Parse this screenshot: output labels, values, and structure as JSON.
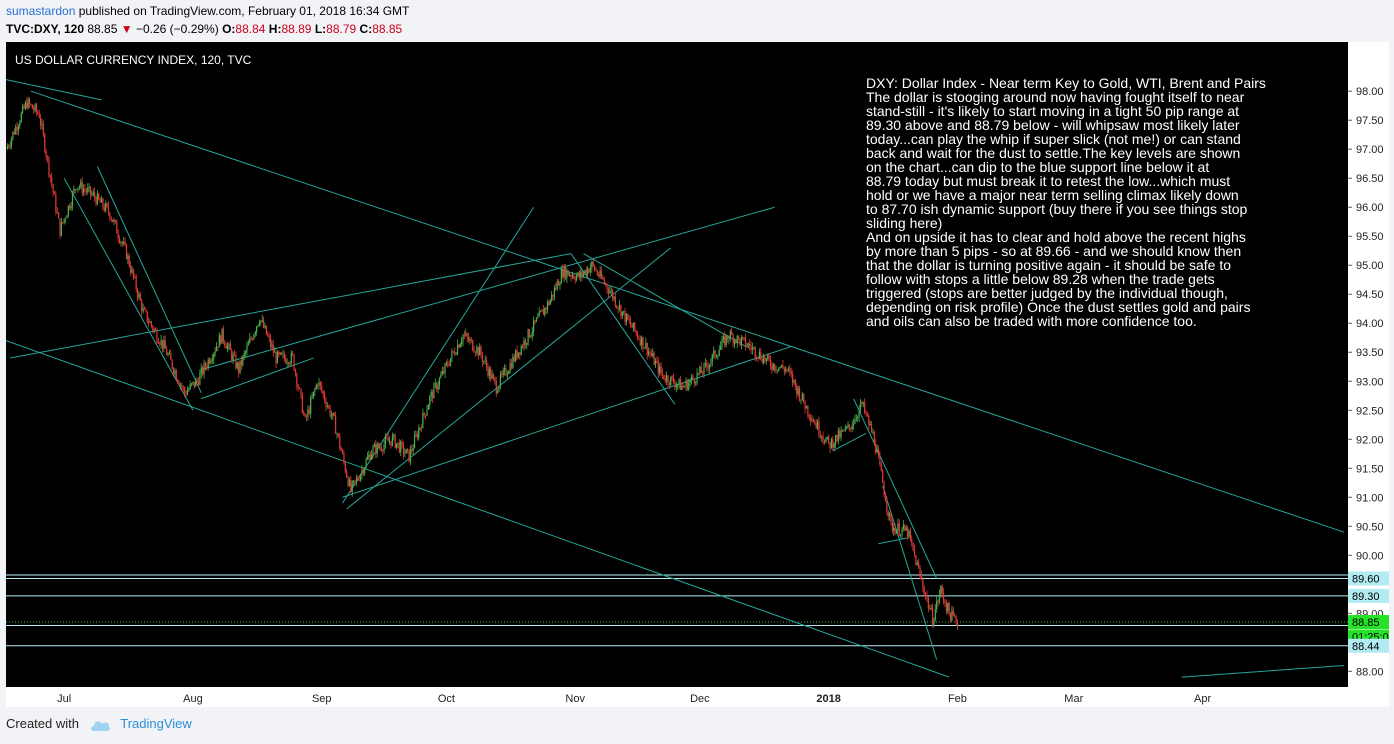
{
  "header": {
    "author": "sumastardon",
    "published_text": "published on TradingView.com, February 01, 2018 16:34 GMT",
    "symbol": "TVC:DXY, 120",
    "last": "88.85",
    "change_arrow": "▼",
    "change": "−0.26 (−0.29%)",
    "open_label": "O:",
    "open": "88.84",
    "high_label": "H:",
    "high": "88.89",
    "low_label": "L:",
    "low": "88.79",
    "close_label": "C:",
    "close": "88.85"
  },
  "footer": {
    "created_with": "Created with",
    "brand": "TradingView"
  },
  "chart_data": {
    "type": "candlestick",
    "title": "US DOLLAR CURRENCY INDEX, 120, TVC",
    "x_ticks": [
      "Jul",
      "Aug",
      "Sep",
      "Oct",
      "Nov",
      "Dec",
      "2018",
      "Feb",
      "Mar",
      "Apr"
    ],
    "y_ticks": [
      "98.00",
      "97.50",
      "97.00",
      "96.50",
      "96.00",
      "95.50",
      "95.00",
      "94.50",
      "94.00",
      "93.50",
      "93.00",
      "92.50",
      "92.00",
      "91.50",
      "91.00",
      "90.50",
      "90.00",
      "89.00",
      "88.00"
    ],
    "ylim": [
      87.85,
      98.4
    ],
    "xlim": [
      "2017-06-17",
      "2018-05-06"
    ],
    "price_path": [
      [
        "2017-06-17",
        97.0
      ],
      [
        "2017-06-22",
        97.8
      ],
      [
        "2017-06-25",
        97.6
      ],
      [
        "2017-06-30",
        95.6
      ],
      [
        "2017-07-04",
        96.4
      ],
      [
        "2017-07-08",
        96.2
      ],
      [
        "2017-07-12",
        95.9
      ],
      [
        "2017-07-16",
        95.2
      ],
      [
        "2017-07-20",
        94.2
      ],
      [
        "2017-07-25",
        93.6
      ],
      [
        "2017-07-30",
        92.8
      ],
      [
        "2017-08-02",
        93.0
      ],
      [
        "2017-08-08",
        93.8
      ],
      [
        "2017-08-12",
        93.2
      ],
      [
        "2017-08-17",
        94.1
      ],
      [
        "2017-08-21",
        93.4
      ],
      [
        "2017-08-25",
        93.4
      ],
      [
        "2017-08-28",
        92.3
      ],
      [
        "2017-08-31",
        93.0
      ],
      [
        "2017-09-04",
        92.3
      ],
      [
        "2017-09-08",
        91.1
      ],
      [
        "2017-09-13",
        91.8
      ],
      [
        "2017-09-18",
        92.0
      ],
      [
        "2017-09-22",
        91.7
      ],
      [
        "2017-09-27",
        92.7
      ],
      [
        "2017-10-02",
        93.4
      ],
      [
        "2017-10-05",
        93.8
      ],
      [
        "2017-10-09",
        93.5
      ],
      [
        "2017-10-13",
        92.9
      ],
      [
        "2017-10-19",
        93.6
      ],
      [
        "2017-10-26",
        94.4
      ],
      [
        "2017-10-29",
        94.9
      ],
      [
        "2017-11-02",
        94.8
      ],
      [
        "2017-11-05",
        95.0
      ],
      [
        "2017-11-09",
        94.6
      ],
      [
        "2017-11-13",
        94.1
      ],
      [
        "2017-11-18",
        93.6
      ],
      [
        "2017-11-22",
        93.1
      ],
      [
        "2017-11-27",
        92.9
      ],
      [
        "2017-12-02",
        93.2
      ],
      [
        "2017-12-08",
        93.8
      ],
      [
        "2017-12-13",
        93.6
      ],
      [
        "2017-12-18",
        93.3
      ],
      [
        "2017-12-22",
        93.2
      ],
      [
        "2017-12-27",
        92.5
      ],
      [
        "2018-01-01",
        91.9
      ],
      [
        "2018-01-06",
        92.2
      ],
      [
        "2018-01-09",
        92.6
      ],
      [
        "2018-01-12",
        92.0
      ],
      [
        "2018-01-16",
        90.5
      ],
      [
        "2018-01-20",
        90.4
      ],
      [
        "2018-01-24",
        89.4
      ],
      [
        "2018-01-26",
        88.9
      ],
      [
        "2018-01-28",
        89.4
      ],
      [
        "2018-01-30",
        89.0
      ],
      [
        "2018-02-01",
        88.85
      ]
    ],
    "trendlines": [
      {
        "from": [
          "2017-06-17",
          98.2
        ],
        "to": [
          "2017-07-10",
          97.85
        ]
      },
      {
        "from": [
          "2017-06-18",
          93.4
        ],
        "to": [
          "2017-10-31",
          95.2
        ]
      },
      {
        "from": [
          "2017-06-17",
          93.7
        ],
        "to": [
          "2018-01-30",
          87.9
        ]
      },
      {
        "from": [
          "2017-07-01",
          96.5
        ],
        "to": [
          "2017-08-01",
          92.5
        ]
      },
      {
        "from": [
          "2017-07-09",
          96.7
        ],
        "to": [
          "2017-08-03",
          92.8
        ]
      },
      {
        "from": [
          "2017-08-03",
          92.7
        ],
        "to": [
          "2017-08-30",
          93.4
        ]
      },
      {
        "from": [
          "2017-09-06",
          90.9
        ],
        "to": [
          "2017-10-22",
          96.0
        ]
      },
      {
        "from": [
          "2017-09-07",
          90.8
        ],
        "to": [
          "2017-11-24",
          95.3
        ]
      },
      {
        "from": [
          "2017-09-06",
          91.0
        ],
        "to": [
          "2017-12-23",
          93.6
        ]
      },
      {
        "from": [
          "2017-10-31",
          95.2
        ],
        "to": [
          "2017-11-25",
          92.6
        ]
      },
      {
        "from": [
          "2017-11-03",
          95.2
        ],
        "to": [
          "2017-12-12",
          93.6
        ]
      },
      {
        "from": [
          "2017-06-23",
          98.0
        ],
        "to": [
          "2018-05-05",
          90.4
        ]
      },
      {
        "from": [
          "2017-08-03",
          93.2
        ],
        "to": [
          "2017-12-19",
          96.0
        ]
      },
      {
        "from": [
          "2018-01-07",
          92.7
        ],
        "to": [
          "2018-01-27",
          89.6
        ]
      },
      {
        "from": [
          "2018-01-02",
          91.8
        ],
        "to": [
          "2018-01-10",
          92.1
        ]
      },
      {
        "from": [
          "2018-01-13",
          90.2
        ],
        "to": [
          "2018-01-20",
          90.3
        ]
      },
      {
        "from": [
          "2018-01-14",
          91.2
        ],
        "to": [
          "2018-01-27",
          88.2
        ]
      },
      {
        "from": [
          "2018-03-27",
          87.9
        ],
        "to": [
          "2018-05-05",
          88.1
        ]
      }
    ],
    "horizontal_levels": [
      89.66,
      89.6,
      89.3,
      88.79,
      88.44
    ],
    "price_labels": [
      {
        "text": "89.60",
        "value": 89.6,
        "bg": "#b2ebf2"
      },
      {
        "text": "89.30",
        "value": 89.3,
        "bg": "#b2ebf2"
      },
      {
        "text": "88.85",
        "value": 88.85,
        "bg": "#26e32a"
      },
      {
        "text": "01:25:00",
        "value": 88.6,
        "bg": "#26e32a"
      },
      {
        "text": "88.44",
        "value": 88.44,
        "bg": "#b2ebf2"
      }
    ],
    "annotation": [
      "DXY:  Dollar Index - Near term Key to Gold, WTI, Brent and Pairs",
      "The dollar is stooging around now having fought itself to near",
      "stand-still - it's likely to start moving in a tight 50 pip range at",
      "89.30 above and 88.79 below - will whipsaw most likely later",
      "today...can play the whip if super slick (not me!) or can stand",
      "back and wait for the dust to settle.The key levels are shown",
      "on the chart...can dip to the blue support line below it at",
      "88.79 today but must break it to retest the low...which must",
      "hold or we have a major near term selling climax likely down",
      "to  87.70 ish dynamic support (buy there if you see things stop",
      "sliding here)",
      "And on upside it has to clear and hold above the recent highs",
      "by more than 5 pips - so at 89.66 - and we should know then",
      "that the dollar is turning positive again - it should be safe to",
      "follow with stops a little below 89.28 when the trade gets",
      "triggered (stops are better judged by the individual though,",
      "depending on risk profile) Once the dust settles gold and pairs",
      "and oils can also be traded with more confidence too."
    ],
    "colors": {
      "background": "#000000",
      "up_candle": "#4caf50",
      "down_candle": "#e53935",
      "trendline": "#26a69a",
      "level_line": "#b2ebf2",
      "axis_bg": "#ffffff",
      "close_line": "#4caf50"
    },
    "grid": false
  }
}
